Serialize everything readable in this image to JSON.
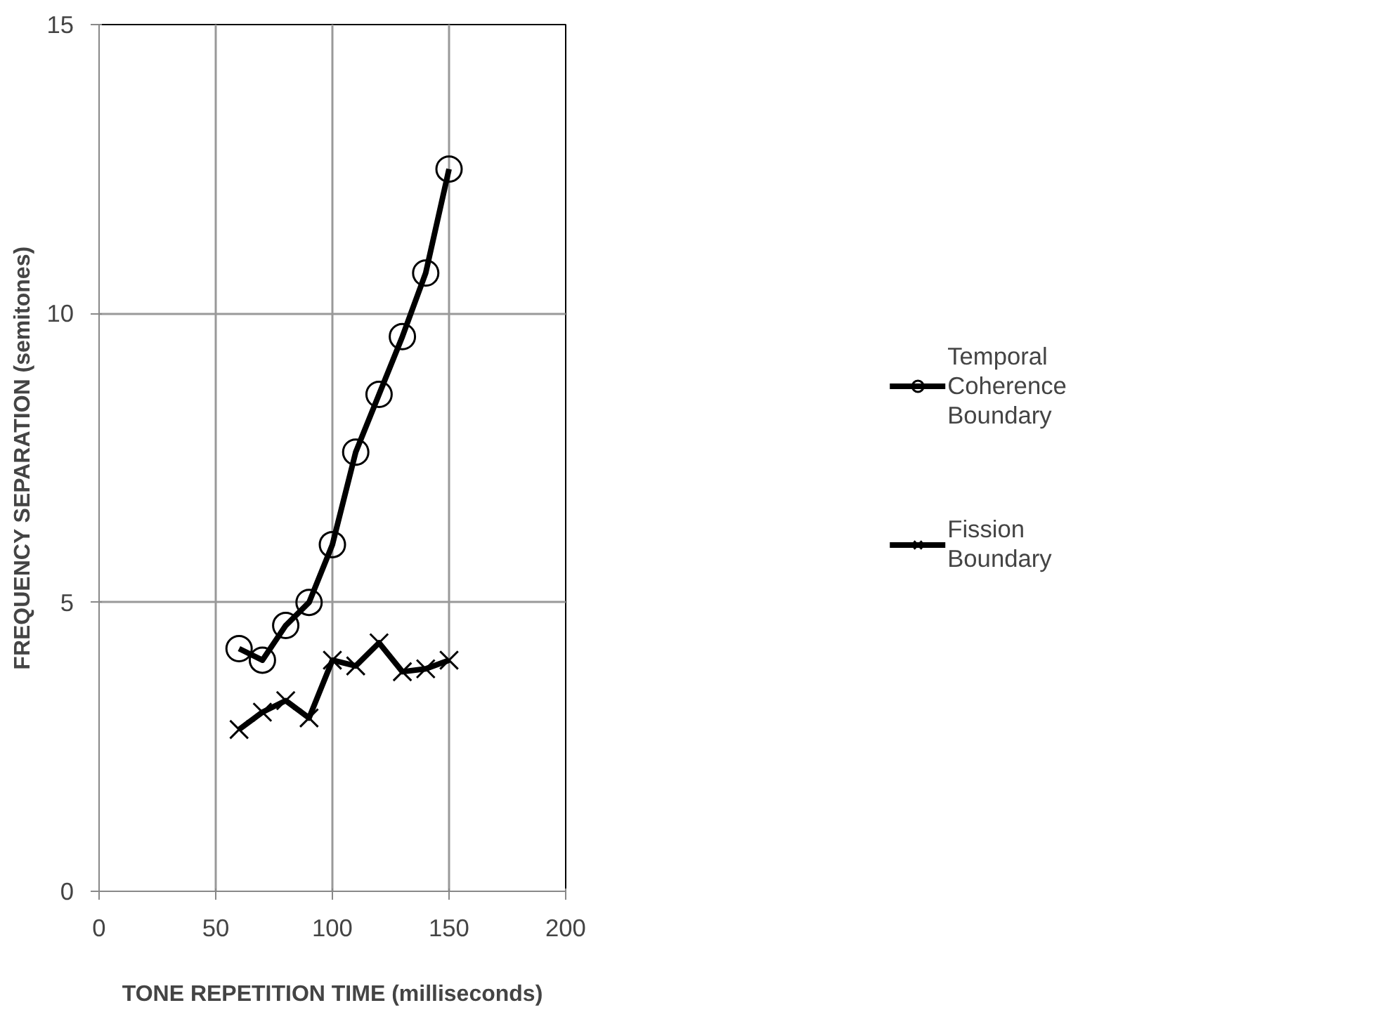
{
  "chart_data": {
    "type": "line",
    "xlabel": "TONE REPETITION TIME (milliseconds)",
    "ylabel": "FREQUENCY SEPARATION (semitones)",
    "x": [
      60,
      70,
      80,
      90,
      100,
      110,
      120,
      130,
      140,
      150
    ],
    "series": [
      {
        "name": "Temporal Coherence Boundary",
        "color": "#000000",
        "marker": "circle",
        "values": [
          4.2,
          4.0,
          4.6,
          5.0,
          6.0,
          7.6,
          8.6,
          9.6,
          10.7,
          12.5
        ]
      },
      {
        "name": "Fission Boundary",
        "color": "#000000",
        "marker": "cross",
        "values": [
          2.8,
          3.1,
          3.3,
          3.0,
          4.0,
          3.9,
          4.3,
          3.8,
          3.85,
          4.0
        ]
      }
    ],
    "xlim": [
      0,
      200
    ],
    "xticks": [
      0,
      50,
      100,
      150,
      200
    ],
    "ylim": [
      0,
      15
    ],
    "yticks": [
      0,
      5,
      10,
      15
    ],
    "grid": true,
    "legend": "right",
    "line_style": "solid"
  }
}
